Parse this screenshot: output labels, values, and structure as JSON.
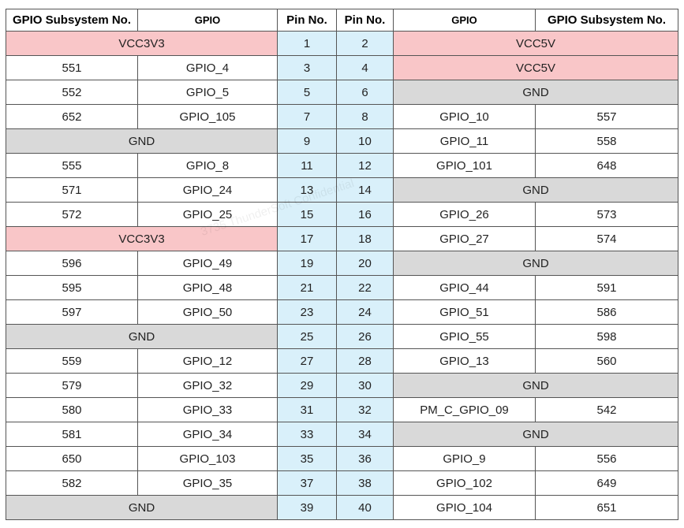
{
  "headers": [
    "GPIO Subsystem No.",
    "GPIO",
    "Pin No.",
    "Pin No.",
    "GPIO",
    "GPIO Subsystem No."
  ],
  "rows": [
    {
      "left": {
        "type": "vcc3",
        "label": "VCC3V3"
      },
      "pin_l": "1",
      "pin_r": "2",
      "right": {
        "type": "vcc5",
        "label": "VCC5V"
      }
    },
    {
      "left": {
        "type": "gpio",
        "sub": "551",
        "gpio": "GPIO_4"
      },
      "pin_l": "3",
      "pin_r": "4",
      "right": {
        "type": "vcc5",
        "label": "VCC5V"
      }
    },
    {
      "left": {
        "type": "gpio",
        "sub": "552",
        "gpio": "GPIO_5"
      },
      "pin_l": "5",
      "pin_r": "6",
      "right": {
        "type": "gnd",
        "label": "GND"
      }
    },
    {
      "left": {
        "type": "gpio",
        "sub": "652",
        "gpio": "GPIO_105"
      },
      "pin_l": "7",
      "pin_r": "8",
      "right": {
        "type": "gpio",
        "gpio": "GPIO_10",
        "sub": "557"
      }
    },
    {
      "left": {
        "type": "gnd",
        "label": "GND"
      },
      "pin_l": "9",
      "pin_r": "10",
      "right": {
        "type": "gpio",
        "gpio": "GPIO_11",
        "sub": "558"
      }
    },
    {
      "left": {
        "type": "gpio",
        "sub": "555",
        "gpio": "GPIO_8",
        "small": true
      },
      "pin_l": "11",
      "pin_r": "12",
      "right": {
        "type": "gpio",
        "gpio": "GPIO_101",
        "sub": "648"
      }
    },
    {
      "left": {
        "type": "gpio",
        "sub": "571",
        "gpio": "GPIO_24"
      },
      "pin_l": "13",
      "pin_r": "14",
      "right": {
        "type": "gnd",
        "label": "GND"
      }
    },
    {
      "left": {
        "type": "gpio",
        "sub": "572",
        "gpio": "GPIO_25"
      },
      "pin_l": "15",
      "pin_r": "16",
      "right": {
        "type": "gpio",
        "gpio": "GPIO_26",
        "sub": "573"
      }
    },
    {
      "left": {
        "type": "vcc3",
        "label": "VCC3V3"
      },
      "pin_l": "17",
      "pin_r": "18",
      "right": {
        "type": "gpio",
        "gpio": "GPIO_27",
        "sub": "574"
      }
    },
    {
      "left": {
        "type": "gpio",
        "sub": "596",
        "gpio": "GPIO_49"
      },
      "pin_l": "19",
      "pin_r": "20",
      "right": {
        "type": "gnd",
        "label": "GND"
      }
    },
    {
      "left": {
        "type": "gpio",
        "sub": "595",
        "gpio": "GPIO_48"
      },
      "pin_l": "21",
      "pin_r": "22",
      "right": {
        "type": "gpio",
        "gpio": "GPIO_44",
        "sub": "591",
        "small": true
      }
    },
    {
      "left": {
        "type": "gpio",
        "sub": "597",
        "gpio": "GPIO_50"
      },
      "pin_l": "23",
      "pin_r": "24",
      "right": {
        "type": "gpio",
        "gpio": "GPIO_51",
        "sub": "586"
      }
    },
    {
      "left": {
        "type": "gnd",
        "label": "GND"
      },
      "pin_l": "25",
      "pin_r": "26",
      "right": {
        "type": "gpio",
        "gpio": "GPIO_55",
        "sub": "598"
      }
    },
    {
      "left": {
        "type": "gpio",
        "sub": "559",
        "gpio": "GPIO_12"
      },
      "pin_l": "27",
      "pin_r": "28",
      "right": {
        "type": "gpio",
        "gpio": "GPIO_13",
        "sub": "560"
      }
    },
    {
      "left": {
        "type": "gpio",
        "sub": "579",
        "gpio": "GPIO_32"
      },
      "pin_l": "29",
      "pin_r": "30",
      "right": {
        "type": "gnd",
        "label": "GND"
      }
    },
    {
      "left": {
        "type": "gpio",
        "sub": "580",
        "gpio": "GPIO_33"
      },
      "pin_l": "31",
      "pin_r": "32",
      "right": {
        "type": "gpio",
        "gpio": "PM_C_GPIO_09",
        "sub": "542"
      }
    },
    {
      "left": {
        "type": "gpio",
        "sub": "581",
        "gpio": "GPIO_34"
      },
      "pin_l": "33",
      "pin_r": "34",
      "right": {
        "type": "gnd",
        "label": "GND"
      }
    },
    {
      "left": {
        "type": "gpio",
        "sub": "650",
        "gpio": "GPIO_103"
      },
      "pin_l": "35",
      "pin_r": "36",
      "right": {
        "type": "gpio",
        "gpio": "GPIO_9",
        "sub": "556",
        "small": true
      }
    },
    {
      "left": {
        "type": "gpio",
        "sub": "582",
        "gpio": "GPIO_35"
      },
      "pin_l": "37",
      "pin_r": "38",
      "right": {
        "type": "gpio",
        "gpio": "GPIO_102",
        "sub": "649"
      }
    },
    {
      "left": {
        "type": "gnd",
        "label": "GND"
      },
      "pin_l": "39",
      "pin_r": "40",
      "right": {
        "type": "gpio",
        "gpio": "GPIO_104",
        "sub": "651"
      }
    }
  ],
  "watermark": "3735 ThunderSoft Confidential",
  "colors": {
    "pin_bg": "#d9f0fa",
    "gnd_bg": "#d9d9d9",
    "vcc_bg": "#f9c6c8",
    "border": "#555555"
  }
}
